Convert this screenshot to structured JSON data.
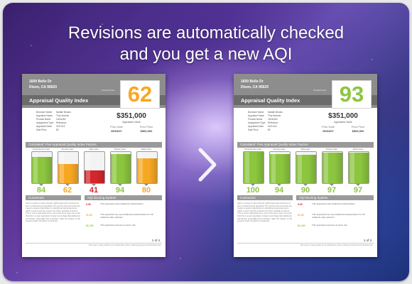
{
  "headline": {
    "line1": "Revisions are automatically checked",
    "line2": "and you get a new AQI"
  },
  "colors": {
    "green": "#8cc63f",
    "orange": "#f7a823",
    "red": "#d4262c",
    "header_gray": "#8d8d8d"
  },
  "report_left": {
    "address_line1": "1600 Bello Dr",
    "address_line2": "Dixon, CA 95620",
    "title": "Appraisal Quality Index",
    "overall_label": "Overall Score",
    "score": "62",
    "score_color": "#f7a823",
    "info": [
      {
        "k": "Borrower Name",
        "v": "Natalie Brooks"
      },
      {
        "k": "Appraiser Name",
        "v": "Thor Artemis"
      },
      {
        "k": "Product Name",
        "v": "1004UAD"
      },
      {
        "k": "Assignment Type",
        "v": "Refinance"
      },
      {
        "k": "Appraised Date",
        "v": "01/01/16"
      },
      {
        "k": "Sale Price",
        "v": "$0"
      }
    ],
    "appraised_value": "$351,000",
    "appraised_value_label": "Appraised Value",
    "prior_date_label": "Prior Date",
    "prior_date": "05/04/07",
    "prior_price_label": "Prior Price",
    "prior_price": "$566,900",
    "calculated_label": "Calculated: Five Appraisal Quality Index Factors",
    "factors": [
      {
        "label": "Comprehensive Index",
        "value": "84",
        "level": 0.84,
        "color": "#8cc63f"
      },
      {
        "label": "Accuracy Index",
        "value": "62",
        "level": 0.62,
        "color": "#f7a823"
      },
      {
        "label": "Value Index",
        "value": "41",
        "level": 0.41,
        "color": "#d4262c"
      },
      {
        "label": "Property Index",
        "value": "94",
        "level": 0.94,
        "color": "#8cc63f"
      },
      {
        "label": "Market Index",
        "value": "80",
        "level": 0.8,
        "color": "#f7a823"
      }
    ],
    "comments_label": "Comments",
    "comments_text": "AQI is a series of rules that QC staff review and comment on prior to delivering an appraisal. The scores and comments are meant to assist underwriters in identifying inaccurate items within a report and the reasons for those possible concerns. This is not an appraisal score, and a low score does not mean that this is a poor appraisal. A lower score flags that additional risk factors, potentially due to location, data, the market, or the property itself, should be considered.",
    "scoring_label": "AQI Scoring System",
    "scoring": [
      {
        "range": "0-50",
        "color": "#d4262c",
        "desc": "This appraisal needs additional substantiation."
      },
      {
        "range": "51-80",
        "color": "#f7a823",
        "desc": "This appraisal may need additional substantiation for full collateral value decision."
      },
      {
        "range": "81-100",
        "color": "#8cc63f",
        "desc": "This appraisal measures at lower risk."
      }
    ],
    "page": "1 of 4",
    "footer": "This report is made possible by the collaborative efforts of Wanrugy Network and Plat Model AQI."
  },
  "report_right": {
    "address_line1": "1600 Bello Dr",
    "address_line2": "Dixon, CA 95620",
    "title": "Appraisal Quality Index",
    "overall_label": "Overall Score",
    "score": "93",
    "score_color": "#8cc63f",
    "info": [
      {
        "k": "Borrower Name",
        "v": "Natalie Brooks"
      },
      {
        "k": "Appraiser Name",
        "v": "Thor Artemis"
      },
      {
        "k": "Product Name",
        "v": "1004UAD"
      },
      {
        "k": "Assignment Type",
        "v": "Refinance"
      },
      {
        "k": "Appraised Date",
        "v": "01/01/16"
      },
      {
        "k": "Sale Price",
        "v": "$0"
      }
    ],
    "appraised_value": "$351,000",
    "appraised_value_label": "Appraised Value",
    "prior_date_label": "Prior Date",
    "prior_date": "05/04/07",
    "prior_price_label": "Prior Price",
    "prior_price": "$566,900",
    "calculated_label": "Calculated: Five Appraisal Quality Index Factors",
    "factors": [
      {
        "label": "Comprehensive Index",
        "value": "100",
        "level": 1.0,
        "color": "#8cc63f"
      },
      {
        "label": "Accuracy Index",
        "value": "94",
        "level": 0.94,
        "color": "#8cc63f"
      },
      {
        "label": "Value Index",
        "value": "90",
        "level": 0.9,
        "color": "#8cc63f"
      },
      {
        "label": "Property Index",
        "value": "97",
        "level": 0.97,
        "color": "#8cc63f"
      },
      {
        "label": "Market Index",
        "value": "97",
        "level": 0.97,
        "color": "#8cc63f"
      }
    ],
    "comments_label": "Comments",
    "comments_text": "AQI is a series of rules that QC staff review and comment on prior to delivering an appraisal. The scores and comments are meant to assist underwriters in identifying inaccurate items within a report and the reasons for those possible concerns. This is not an appraisal score, and a low score does not mean that this is a poor appraisal. A lower score flags that additional risk factors, potentially due to location, data, the market, or the property itself, should be considered.",
    "scoring_label": "AQI Scoring System",
    "scoring": [
      {
        "range": "0-50",
        "color": "#d4262c",
        "desc": "This appraisal needs additional substantiation."
      },
      {
        "range": "51-80",
        "color": "#f7a823",
        "desc": "This appraisal may need additional substantiation for full collateral value decision."
      },
      {
        "range": "81-100",
        "color": "#8cc63f",
        "desc": "This appraisal measures at lower risk."
      }
    ],
    "page": "1 of 3",
    "footer": "This report is made possible by the collaborative efforts of Wanrugy Network and Plat Model AQI."
  },
  "arrow_icon": "chevron-right-icon"
}
